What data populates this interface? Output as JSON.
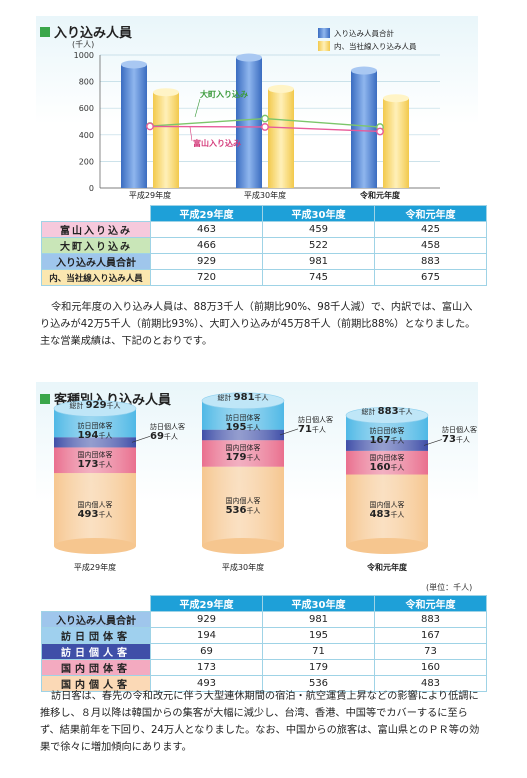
{
  "section1": {
    "title": "入り込み人員",
    "y_unit": "(千人)",
    "legend": [
      "入り込み人員合計",
      "内、当社線入り込み人員"
    ],
    "line_labels": [
      "大町入り込み",
      "富山入り込み"
    ],
    "table": {
      "headers": [
        "平成29年度",
        "平成30年度",
        "令和元年度"
      ],
      "rows": [
        {
          "label": "富山入り込み",
          "values": [
            "463",
            "459",
            "425"
          ]
        },
        {
          "label": "大町入り込み",
          "values": [
            "466",
            "522",
            "458"
          ]
        },
        {
          "label": "入り込み人員合計",
          "values": [
            "929",
            "981",
            "883"
          ]
        },
        {
          "label": "内、当社線入り込み人員",
          "values": [
            "720",
            "745",
            "675"
          ]
        }
      ]
    },
    "paragraph": "令和元年度の入り込み人員は、88万3千人（前期比90%、98千人減）で、内訳では、富山入り込みが42万5千人（前期比93%）、大町入り込みが45万8千人（前期比88%）となりました。　主な営業成績は、下記のとおりです。"
  },
  "section2": {
    "title": "客種別入り込み人員",
    "unit_note": "(単位：千人)",
    "total_prefix": "総計",
    "person_unit": "千人",
    "segment_names": [
      "訪日団体客",
      "訪日個人客",
      "国内団体客",
      "国内個人客"
    ],
    "cylinders": [
      {
        "year": "平成29年度",
        "total": "929",
        "values": [
          "194",
          "69",
          "173",
          "493"
        ]
      },
      {
        "year": "平成30年度",
        "total": "981",
        "values": [
          "195",
          "71",
          "179",
          "536"
        ]
      },
      {
        "year": "令和元年度",
        "total": "883",
        "values": [
          "167",
          "73",
          "160",
          "483"
        ]
      }
    ],
    "table": {
      "headers": [
        "平成29年度",
        "平成30年度",
        "令和元年度"
      ],
      "rows": [
        {
          "label": "入り込み人員合計",
          "values": [
            "929",
            "981",
            "883"
          ]
        },
        {
          "label": "訪日団体客",
          "values": [
            "194",
            "195",
            "167"
          ]
        },
        {
          "label": "訪日個人客",
          "values": [
            "69",
            "71",
            "73"
          ]
        },
        {
          "label": "国内団体客",
          "values": [
            "173",
            "179",
            "160"
          ]
        },
        {
          "label": "国内個人客",
          "values": [
            "493",
            "536",
            "483"
          ]
        }
      ]
    },
    "paragraph": "訪日客は、春先の令和改元に伴う大型連休期間の宿泊・航空運賃上昇などの影響により低調に推移し、８月以降は韓国からの集客が大幅に減少し、台湾、香港、中国等でカバーするに至らず、結果前年を下回り、24万人となりました。なお、中国からの旅客は、富山県とのＰＲ等の効果で徐々に増加傾向にあります。"
  },
  "chart_data": [
    {
      "type": "bar",
      "title": "入り込み人員",
      "ylabel": "(千人)",
      "categories": [
        "平成29年度",
        "平成30年度",
        "令和元年度"
      ],
      "ylim": [
        0,
        1000
      ],
      "yticks": [
        0,
        200,
        400,
        600,
        800,
        1000
      ],
      "series": [
        {
          "name": "入り込み人員合計",
          "kind": "bar",
          "color": "#4a7fd0",
          "values": [
            929,
            981,
            883
          ]
        },
        {
          "name": "内、当社線入り込み人員",
          "kind": "bar",
          "color": "#f6d36b",
          "values": [
            720,
            745,
            675
          ]
        },
        {
          "name": "大町入り込み",
          "kind": "line",
          "color": "#7cc66a",
          "values": [
            466,
            522,
            458
          ]
        },
        {
          "name": "富山入り込み",
          "kind": "line",
          "color": "#e85a9a",
          "values": [
            463,
            459,
            425
          ]
        }
      ]
    },
    {
      "type": "bar",
      "title": "客種別入り込み人員",
      "categories": [
        "平成29年度",
        "平成30年度",
        "令和元年度"
      ],
      "stacked": true,
      "series": [
        {
          "name": "訪日団体客",
          "color": "#4fb8e6",
          "values": [
            194,
            195,
            167
          ]
        },
        {
          "name": "訪日個人客",
          "color": "#3f4fa8",
          "values": [
            69,
            71,
            73
          ]
        },
        {
          "name": "国内団体客",
          "color": "#ea6f8e",
          "values": [
            173,
            179,
            160
          ]
        },
        {
          "name": "国内個人客",
          "color": "#f6c68f",
          "values": [
            493,
            536,
            483
          ]
        }
      ],
      "totals": [
        929,
        981,
        883
      ]
    }
  ],
  "colors": {
    "table_header": "#1ea0d8",
    "row_toyama": "#f6c9dc",
    "row_omachi": "#c9e6b8",
    "row_total": "#9fc6ec",
    "row_tousha": "#fbe7b0",
    "row_fg": "#9fd0ee",
    "row_fi": "#3f4fa8",
    "row_dg": "#f3aac0",
    "row_di": "#fbd9b6"
  }
}
